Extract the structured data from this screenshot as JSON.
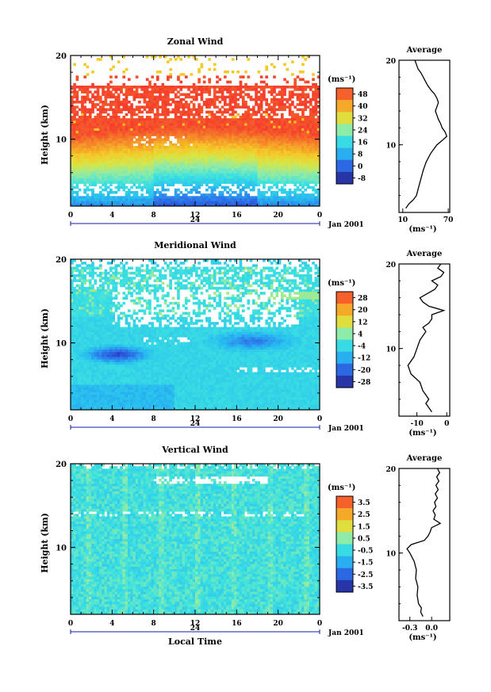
{
  "chart_data": [
    {
      "type": "heatmap",
      "title": "Zonal Wind",
      "ylabel": "Height (km)",
      "xlabel": "",
      "x_ticks": [
        "0",
        "4",
        "8",
        "12",
        "16",
        "20",
        "0"
      ],
      "y_ticks": [
        "20",
        "10"
      ],
      "date_label": "24",
      "date_suffix": "Jan 2001",
      "ylim": [
        2,
        20
      ],
      "xlim": [
        0,
        24
      ],
      "colorbar": {
        "unit": "(ms⁻¹)",
        "ticks": [
          "48",
          "40",
          "32",
          "24",
          "16",
          "8",
          "0",
          "-8"
        ],
        "levels": [
          52,
          -12
        ]
      },
      "average": {
        "title": "Average",
        "y_ticks": [
          "20",
          "10"
        ],
        "x_ticks": [
          "10",
          "70"
        ],
        "xlim": [
          5,
          72
        ],
        "unit": "(ms⁻¹)",
        "profile": [
          [
            2.5,
            14
          ],
          [
            3,
            18
          ],
          [
            3.5,
            24
          ],
          [
            4,
            28
          ],
          [
            5,
            31
          ],
          [
            6,
            34
          ],
          [
            7,
            37
          ],
          [
            8,
            41
          ],
          [
            9,
            47
          ],
          [
            10,
            55
          ],
          [
            10.5,
            62
          ],
          [
            11,
            68
          ],
          [
            11.5,
            66
          ],
          [
            12,
            62
          ],
          [
            12.5,
            60
          ],
          [
            13,
            57
          ],
          [
            13.5,
            55
          ],
          [
            14,
            53
          ],
          [
            14.5,
            55
          ],
          [
            15,
            57
          ],
          [
            15.5,
            55
          ],
          [
            16,
            52
          ],
          [
            16.5,
            47
          ],
          [
            17,
            43
          ],
          [
            17.5,
            40
          ],
          [
            18,
            37
          ],
          [
            18.5,
            34
          ],
          [
            19,
            30
          ],
          [
            19.5,
            28
          ],
          [
            20,
            26
          ]
        ]
      }
    },
    {
      "type": "heatmap",
      "title": "Meridional Wind",
      "ylabel": "Height (km)",
      "xlabel": "",
      "x_ticks": [
        "0",
        "4",
        "8",
        "12",
        "16",
        "20",
        "0"
      ],
      "y_ticks": [
        "20",
        "10"
      ],
      "date_label": "24",
      "date_suffix": "Jan 2001",
      "ylim": [
        2,
        20
      ],
      "xlim": [
        0,
        24
      ],
      "colorbar": {
        "unit": "(ms⁻¹)",
        "ticks": [
          "28",
          "20",
          "12",
          "4",
          "-4",
          "-12",
          "-20",
          "-28"
        ],
        "levels": [
          32,
          -32
        ]
      },
      "average": {
        "title": "Average",
        "y_ticks": [
          "20",
          "10"
        ],
        "x_ticks": [
          "-10",
          "0"
        ],
        "xlim": [
          -16,
          1
        ],
        "unit": "(ms⁻¹)",
        "profile": [
          [
            2.5,
            -5
          ],
          [
            3,
            -6
          ],
          [
            3.5,
            -7
          ],
          [
            4,
            -6
          ],
          [
            4.5,
            -7
          ],
          [
            5,
            -8
          ],
          [
            6,
            -9
          ],
          [
            7,
            -12
          ],
          [
            8,
            -13
          ],
          [
            9,
            -11
          ],
          [
            10,
            -10
          ],
          [
            11,
            -9
          ],
          [
            12,
            -7
          ],
          [
            12.5,
            -8
          ],
          [
            13,
            -6
          ],
          [
            13.5,
            -5
          ],
          [
            14,
            -5
          ],
          [
            14.5,
            -1
          ],
          [
            15,
            -6
          ],
          [
            15.5,
            -8
          ],
          [
            16,
            -9
          ],
          [
            17,
            -4
          ],
          [
            17.5,
            -3
          ],
          [
            18,
            -5
          ],
          [
            18.5,
            -2
          ],
          [
            19,
            -1
          ],
          [
            19.5,
            -3
          ],
          [
            20,
            -2
          ]
        ]
      }
    },
    {
      "type": "heatmap",
      "title": "Vertical Wind",
      "ylabel": "Height (km)",
      "xlabel": "Local Time",
      "x_ticks": [
        "0",
        "4",
        "8",
        "12",
        "16",
        "20",
        "0"
      ],
      "y_ticks": [
        "20",
        "10"
      ],
      "date_label": "24",
      "date_suffix": "Jan 2001",
      "ylim": [
        2,
        20
      ],
      "xlim": [
        0,
        24
      ],
      "colorbar": {
        "unit": "(ms⁻¹)",
        "ticks": [
          "3.5",
          "2.5",
          "1.5",
          "0.5",
          "-0.5",
          "-1.5",
          "-2.5",
          "-3.5"
        ],
        "levels": [
          4,
          -4
        ]
      },
      "average": {
        "title": "Average",
        "y_ticks": [
          "20",
          "10"
        ],
        "x_ticks": [
          "-0.3",
          "0.0"
        ],
        "xlim": [
          -0.45,
          0.25
        ],
        "unit": "(ms⁻¹)",
        "profile": [
          [
            2.5,
            -0.12
          ],
          [
            3,
            -0.15
          ],
          [
            3.5,
            -0.14
          ],
          [
            4,
            -0.18
          ],
          [
            5,
            -0.2
          ],
          [
            6,
            -0.19
          ],
          [
            7,
            -0.22
          ],
          [
            8,
            -0.21
          ],
          [
            9,
            -0.24
          ],
          [
            10,
            -0.3
          ],
          [
            10.5,
            -0.34
          ],
          [
            11,
            -0.28
          ],
          [
            11.5,
            -0.1
          ],
          [
            12,
            -0.05
          ],
          [
            12.5,
            -0.02
          ],
          [
            13,
            0.0
          ],
          [
            13.5,
            0.12
          ],
          [
            14,
            0.03
          ],
          [
            14.5,
            0.05
          ],
          [
            15,
            0.02
          ],
          [
            15.5,
            0.06
          ],
          [
            16,
            0.04
          ],
          [
            16.5,
            0.08
          ],
          [
            17,
            0.05
          ],
          [
            17.5,
            0.09
          ],
          [
            18,
            0.06
          ],
          [
            18.5,
            0.1
          ],
          [
            19,
            0.07
          ],
          [
            19.5,
            0.11
          ],
          [
            20,
            0.08
          ]
        ]
      }
    }
  ]
}
